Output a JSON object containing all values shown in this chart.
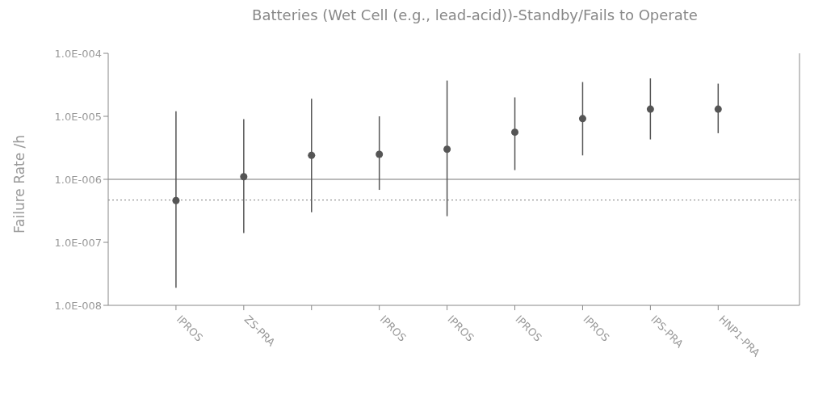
{
  "chart_data": {
    "type": "scatter",
    "title": "Batteries (Wet Cell (e.g., lead-acid))-Standby/Fails to Operate",
    "ylabel": "Failure Rate /h",
    "categories": [
      "IPROS",
      "ZS-PRA",
      null,
      "IPROS",
      "IPROS",
      "IPROS",
      "IPROS",
      "IPS-PRA",
      "HNP1-PRA"
    ],
    "values": [
      4.6e-07,
      1.1e-06,
      2.4e-06,
      2.5e-06,
      3e-06,
      5.6e-06,
      9.2e-06,
      1.3e-05,
      1.3e-05
    ],
    "errors": [
      [
        1.9e-08,
        1.2e-05
      ],
      [
        1.4e-07,
        9e-06
      ],
      [
        3e-07,
        1.9e-05
      ],
      [
        6.8e-07,
        1e-05
      ],
      [
        2.6e-07,
        3.7e-05
      ],
      [
        1.4e-06,
        2e-05
      ],
      [
        2.4e-06,
        3.5e-05
      ],
      [
        4.3e-06,
        4e-05
      ],
      [
        5.4e-06,
        3.3e-05
      ]
    ],
    "color": "#555555",
    "marker": "circle",
    "log": "y",
    "grid": false,
    "ylim": [
      1e-08,
      0.0001
    ],
    "yticks": [
      {
        "value": 1e-08,
        "label": "1.0E-008"
      },
      {
        "value": 1e-07,
        "label": "1.0E-007"
      },
      {
        "value": 1e-06,
        "label": "1.0E-006"
      },
      {
        "value": 1e-05,
        "label": "1.0E-005"
      },
      {
        "value": 0.0001,
        "label": "1.0E-004"
      }
    ],
    "ref_lines": [
      {
        "axis": "y",
        "value": 1e-06,
        "color": "#777777",
        "line_style": "solid"
      },
      {
        "axis": "y",
        "value": 4.7e-07,
        "color": "#999999",
        "line_style": "dotted"
      }
    ]
  }
}
